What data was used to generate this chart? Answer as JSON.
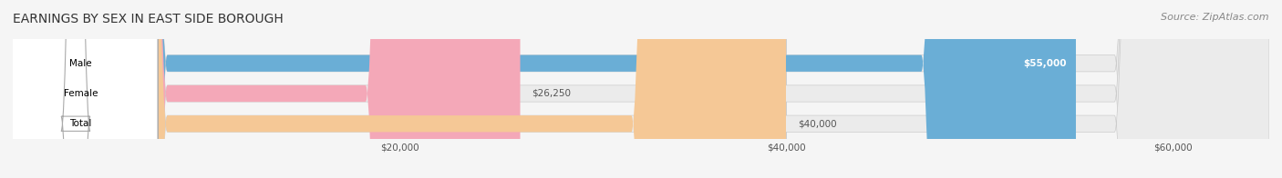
{
  "title": "EARNINGS BY SEX IN EAST SIDE BOROUGH",
  "source": "Source: ZipAtlas.com",
  "categories": [
    "Male",
    "Female",
    "Total"
  ],
  "values": [
    55000,
    26250,
    40000
  ],
  "value_labels": [
    "$55,000",
    "$26,250",
    "$40,000"
  ],
  "bar_colors": [
    "#6aaed6",
    "#f4a8b8",
    "#f5c896"
  ],
  "bar_edge_colors": [
    "#5a9ec6",
    "#e898a8",
    "#e5b886"
  ],
  "label_colors": [
    "#6aaed6",
    "#f4a8b8",
    "#f5c896"
  ],
  "xmin": 0,
  "xmax": 65000,
  "xticks": [
    20000,
    40000,
    60000
  ],
  "xticklabels": [
    "$20,000",
    "$40,000",
    "$60,000"
  ],
  "background_color": "#f5f5f5",
  "bar_bg_color": "#ebebeb",
  "title_fontsize": 10,
  "source_fontsize": 8,
  "bar_height": 0.55
}
